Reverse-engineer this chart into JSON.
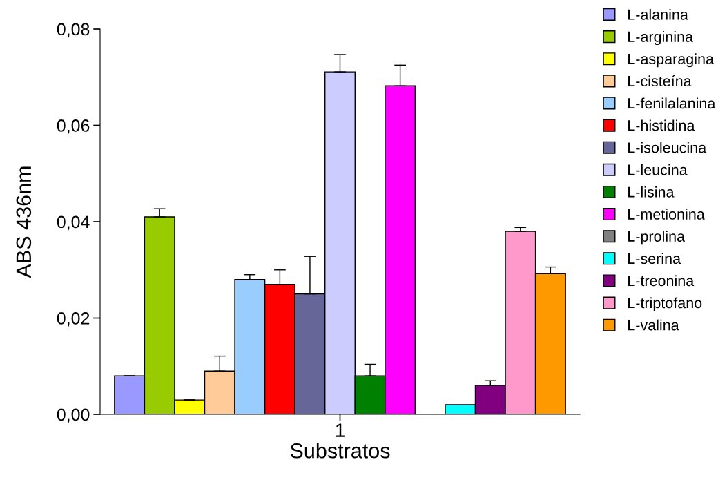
{
  "chart_data": {
    "type": "bar",
    "xlabel": "Substratos",
    "ylabel": "ABS 436nm",
    "categories": [
      "1"
    ],
    "ylim": [
      0,
      0.08
    ],
    "yticks": [
      {
        "value": 0,
        "label": "0,00"
      },
      {
        "value": 0.02,
        "label": "0,02"
      },
      {
        "value": 0.04,
        "label": "0,04"
      },
      {
        "value": 0.06,
        "label": "0,06"
      },
      {
        "value": 0.08,
        "label": "0,08"
      }
    ],
    "grid": false,
    "legend": "right",
    "marker": "square",
    "series": [
      {
        "name": "L-alanina",
        "color": "#9999ff",
        "values": [
          0.008
        ],
        "errors": [
          [
            0.008,
            0.008
          ]
        ]
      },
      {
        "name": "L-arginina",
        "color": "#99cc00",
        "values": [
          0.041
        ],
        "errors": [
          [
            0.041,
            0.0427
          ]
        ]
      },
      {
        "name": "L-asparagina",
        "color": "#ffff00",
        "values": [
          0.003
        ],
        "errors": [
          [
            0.003,
            0.003
          ]
        ]
      },
      {
        "name": "L-cisteína",
        "color": "#ffcc99",
        "values": [
          0.009
        ],
        "errors": [
          [
            0.009,
            0.0121
          ]
        ]
      },
      {
        "name": "L-fenilalanina",
        "color": "#99ccff",
        "values": [
          0.028
        ],
        "errors": [
          [
            0.028,
            0.029
          ]
        ]
      },
      {
        "name": "L-histidina",
        "color": "#ff0000",
        "values": [
          0.027
        ],
        "errors": [
          [
            0.027,
            0.03
          ]
        ]
      },
      {
        "name": "L-isoleucina",
        "color": "#666699",
        "values": [
          0.025
        ],
        "errors": [
          [
            0.025,
            0.0328
          ]
        ]
      },
      {
        "name": "L-leucina",
        "color": "#ccccff",
        "values": [
          0.0711
        ],
        "errors": [
          [
            0.0711,
            0.0747
          ]
        ]
      },
      {
        "name": "L-lisina",
        "color": "#008000",
        "values": [
          0.008
        ],
        "errors": [
          [
            0.008,
            0.0104
          ]
        ]
      },
      {
        "name": "L-metionina",
        "color": "#ff00ff",
        "values": [
          0.0682
        ],
        "errors": [
          [
            0.0682,
            0.0725
          ]
        ]
      },
      {
        "name": "L-prolina",
        "color": "#808080",
        "values": [
          null
        ]
      },
      {
        "name": "L-serina",
        "color": "#00ffff",
        "values": [
          0.002
        ]
      },
      {
        "name": "L-treonina",
        "color": "#800080",
        "values": [
          0.006
        ],
        "errors": [
          [
            0.006,
            0.007
          ]
        ]
      },
      {
        "name": "L-triptofano",
        "color": "#ff99cc",
        "values": [
          0.038
        ],
        "errors": [
          [
            0.038,
            0.0388
          ]
        ]
      },
      {
        "name": "L-valina",
        "color": "#ff9900",
        "values": [
          0.0292
        ],
        "errors": [
          [
            0.0292,
            0.0306
          ]
        ]
      }
    ]
  }
}
